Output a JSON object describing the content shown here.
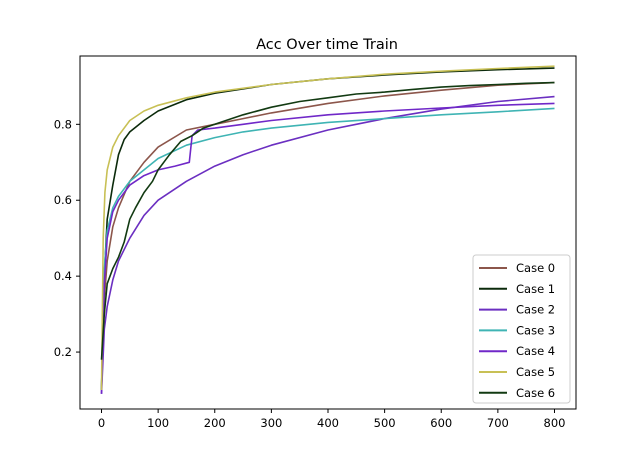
{
  "chart_data": {
    "type": "line",
    "title": "Acc Over time Train",
    "xlabel": "",
    "ylabel": "",
    "xlim": [
      -38,
      838
    ],
    "ylim": [
      0.05,
      0.98
    ],
    "xticks": [
      0,
      100,
      200,
      300,
      400,
      500,
      600,
      700,
      800
    ],
    "yticks": [
      0.2,
      0.4,
      0.6,
      0.8
    ],
    "ytick_labels": [
      "0.2",
      "0.4",
      "0.6",
      "0.8"
    ],
    "grid": false,
    "legend_position": "lower-right",
    "series": [
      {
        "name": "Case 0",
        "color": "#8c564b",
        "points": [
          [
            0,
            0.1
          ],
          [
            5,
            0.34
          ],
          [
            10,
            0.44
          ],
          [
            20,
            0.53
          ],
          [
            30,
            0.58
          ],
          [
            50,
            0.65
          ],
          [
            75,
            0.7
          ],
          [
            100,
            0.74
          ],
          [
            150,
            0.785
          ],
          [
            200,
            0.8
          ],
          [
            250,
            0.815
          ],
          [
            300,
            0.83
          ],
          [
            400,
            0.855
          ],
          [
            500,
            0.875
          ],
          [
            600,
            0.89
          ],
          [
            700,
            0.903
          ],
          [
            800,
            0.91
          ]
        ]
      },
      {
        "name": "Case 1",
        "color": "#0b2a0b",
        "points": [
          [
            0,
            0.1
          ],
          [
            5,
            0.4
          ],
          [
            10,
            0.55
          ],
          [
            20,
            0.64
          ],
          [
            30,
            0.72
          ],
          [
            40,
            0.76
          ],
          [
            50,
            0.78
          ],
          [
            75,
            0.81
          ],
          [
            100,
            0.835
          ],
          [
            150,
            0.865
          ],
          [
            200,
            0.882
          ],
          [
            300,
            0.905
          ],
          [
            400,
            0.92
          ],
          [
            500,
            0.93
          ],
          [
            600,
            0.938
          ],
          [
            700,
            0.944
          ],
          [
            800,
            0.948
          ]
        ]
      },
      {
        "name": "Case 2",
        "color": "#6b2fc1",
        "points": [
          [
            0,
            0.09
          ],
          [
            5,
            0.26
          ],
          [
            10,
            0.32
          ],
          [
            20,
            0.39
          ],
          [
            30,
            0.44
          ],
          [
            50,
            0.5
          ],
          [
            75,
            0.56
          ],
          [
            100,
            0.6
          ],
          [
            150,
            0.65
          ],
          [
            200,
            0.69
          ],
          [
            250,
            0.72
          ],
          [
            300,
            0.745
          ],
          [
            400,
            0.785
          ],
          [
            500,
            0.815
          ],
          [
            600,
            0.84
          ],
          [
            700,
            0.86
          ],
          [
            800,
            0.873
          ]
        ]
      },
      {
        "name": "Case 3",
        "color": "#3fb4b4",
        "points": [
          [
            0,
            0.1
          ],
          [
            5,
            0.42
          ],
          [
            10,
            0.52
          ],
          [
            20,
            0.58
          ],
          [
            30,
            0.61
          ],
          [
            50,
            0.65
          ],
          [
            75,
            0.68
          ],
          [
            100,
            0.71
          ],
          [
            150,
            0.745
          ],
          [
            200,
            0.765
          ],
          [
            250,
            0.78
          ],
          [
            300,
            0.79
          ],
          [
            400,
            0.805
          ],
          [
            500,
            0.815
          ],
          [
            600,
            0.825
          ],
          [
            700,
            0.833
          ],
          [
            800,
            0.842
          ]
        ]
      },
      {
        "name": "Case 4",
        "color": "#7028c8",
        "points": [
          [
            0,
            0.09
          ],
          [
            5,
            0.38
          ],
          [
            10,
            0.5
          ],
          [
            20,
            0.57
          ],
          [
            30,
            0.6
          ],
          [
            50,
            0.64
          ],
          [
            75,
            0.665
          ],
          [
            100,
            0.68
          ],
          [
            130,
            0.69
          ],
          [
            155,
            0.7
          ],
          [
            160,
            0.77
          ],
          [
            170,
            0.785
          ],
          [
            200,
            0.79
          ],
          [
            250,
            0.8
          ],
          [
            300,
            0.81
          ],
          [
            400,
            0.825
          ],
          [
            500,
            0.835
          ],
          [
            600,
            0.843
          ],
          [
            700,
            0.85
          ],
          [
            800,
            0.855
          ]
        ]
      },
      {
        "name": "Case 5",
        "color": "#c8c055",
        "points": [
          [
            0,
            0.1
          ],
          [
            3,
            0.5
          ],
          [
            6,
            0.62
          ],
          [
            10,
            0.68
          ],
          [
            20,
            0.74
          ],
          [
            30,
            0.77
          ],
          [
            50,
            0.81
          ],
          [
            75,
            0.835
          ],
          [
            100,
            0.85
          ],
          [
            150,
            0.87
          ],
          [
            200,
            0.885
          ],
          [
            300,
            0.905
          ],
          [
            400,
            0.92
          ],
          [
            500,
            0.932
          ],
          [
            600,
            0.94
          ],
          [
            700,
            0.947
          ],
          [
            800,
            0.953
          ]
        ]
      },
      {
        "name": "Case 6",
        "color": "#123a12",
        "points": [
          [
            0,
            0.18
          ],
          [
            5,
            0.3
          ],
          [
            10,
            0.38
          ],
          [
            20,
            0.42
          ],
          [
            30,
            0.45
          ],
          [
            40,
            0.49
          ],
          [
            50,
            0.55
          ],
          [
            60,
            0.58
          ],
          [
            75,
            0.62
          ],
          [
            90,
            0.65
          ],
          [
            100,
            0.68
          ],
          [
            120,
            0.72
          ],
          [
            140,
            0.755
          ],
          [
            160,
            0.77
          ],
          [
            180,
            0.79
          ],
          [
            200,
            0.8
          ],
          [
            250,
            0.825
          ],
          [
            300,
            0.845
          ],
          [
            350,
            0.86
          ],
          [
            400,
            0.87
          ],
          [
            450,
            0.88
          ],
          [
            500,
            0.885
          ],
          [
            550,
            0.892
          ],
          [
            600,
            0.898
          ],
          [
            650,
            0.902
          ],
          [
            700,
            0.905
          ],
          [
            750,
            0.908
          ],
          [
            800,
            0.91
          ]
        ]
      }
    ]
  }
}
